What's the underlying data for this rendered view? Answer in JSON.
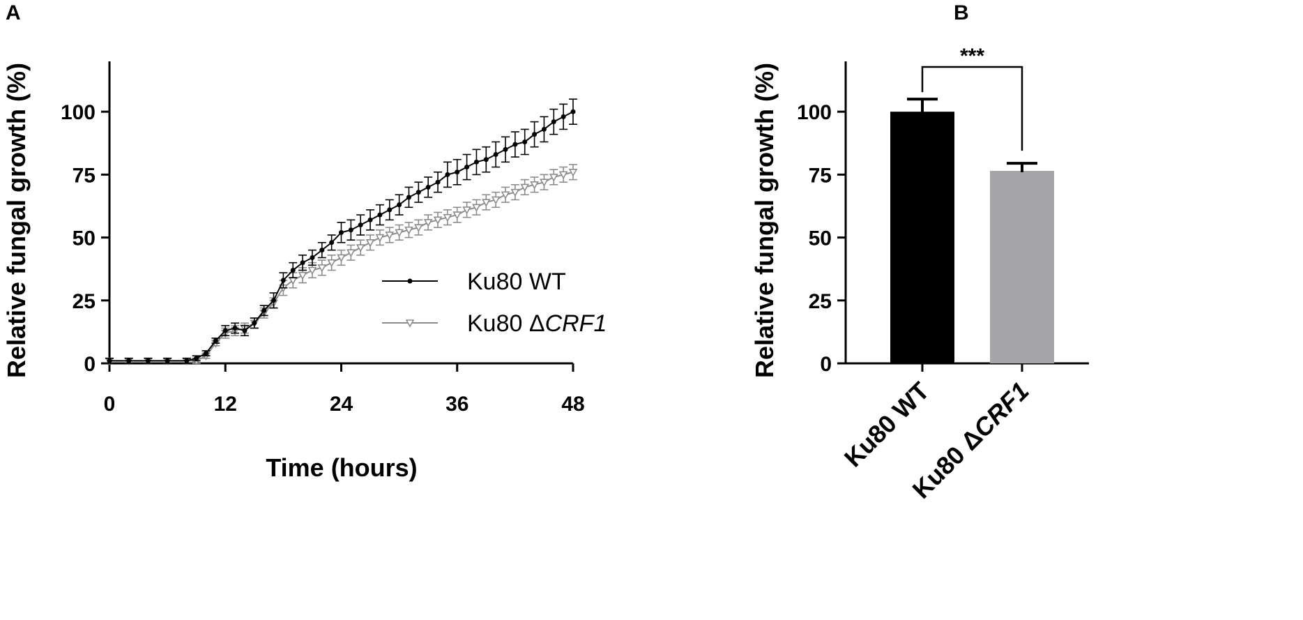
{
  "chart_data": [
    {
      "panel": "A",
      "type": "line",
      "xlabel": "Time (hours)",
      "ylabel": "Relative fungal growth (%)",
      "xlim": [
        0,
        48
      ],
      "ylim": [
        0,
        120
      ],
      "xticks": [
        "0",
        "12",
        "24",
        "36",
        "48"
      ],
      "yticks": [
        "0",
        "25",
        "50",
        "75",
        "100"
      ],
      "legend_position": "center-right",
      "series": [
        {
          "name": "Ku80 WT",
          "name_plain": "Ku80 ",
          "name_italic": "",
          "marker": "circle",
          "color": "#000000",
          "x": [
            0,
            2,
            4,
            6,
            8,
            9,
            10,
            11,
            12,
            13,
            14,
            15,
            16,
            17,
            18,
            19,
            20,
            21,
            22,
            23,
            24,
            25,
            26,
            27,
            28,
            29,
            30,
            31,
            32,
            33,
            34,
            35,
            36,
            37,
            38,
            39,
            40,
            41,
            42,
            43,
            44,
            45,
            46,
            47,
            48
          ],
          "y": [
            1,
            1,
            1,
            1,
            1,
            2,
            4,
            9,
            13,
            14,
            13,
            16,
            21,
            25,
            33,
            37,
            40,
            42,
            45,
            48,
            52,
            53,
            55,
            57,
            59,
            61,
            63,
            66,
            68,
            70,
            72,
            75,
            76,
            78,
            80,
            81,
            83,
            85,
            87,
            88,
            91,
            93,
            96,
            98,
            100
          ],
          "err": [
            1,
            1,
            1,
            1,
            1,
            1,
            1,
            1,
            2,
            2,
            2,
            2,
            2,
            3,
            3,
            3,
            3,
            3,
            3,
            3,
            4,
            4,
            4,
            4,
            4,
            4,
            4,
            4,
            4,
            4,
            4,
            5,
            5,
            5,
            5,
            5,
            5,
            5,
            5,
            5,
            5,
            5,
            5,
            5,
            5
          ]
        },
        {
          "name": "Ku80 ΔCRF1",
          "name_plain": "Ku80 Δ",
          "name_italic": "CRF1",
          "marker": "triangle-down",
          "color": "#8c8c8c",
          "x": [
            0,
            2,
            4,
            6,
            8,
            9,
            10,
            11,
            12,
            13,
            14,
            15,
            16,
            17,
            18,
            19,
            20,
            21,
            22,
            23,
            24,
            25,
            26,
            27,
            28,
            29,
            30,
            31,
            32,
            33,
            34,
            35,
            36,
            37,
            38,
            39,
            40,
            41,
            42,
            43,
            44,
            45,
            46,
            47,
            48
          ],
          "y": [
            1,
            1,
            1,
            1,
            1,
            1,
            3,
            8,
            12,
            13,
            14,
            16,
            20,
            24,
            30,
            33,
            35,
            37,
            38,
            40,
            42,
            44,
            46,
            48,
            50,
            51,
            52,
            53,
            54,
            56,
            57,
            58,
            59,
            61,
            62,
            64,
            65,
            67,
            68,
            70,
            71,
            72,
            74,
            75,
            76
          ],
          "err": [
            1,
            1,
            1,
            1,
            1,
            1,
            1,
            1,
            2,
            2,
            2,
            2,
            2,
            2,
            3,
            3,
            3,
            3,
            3,
            3,
            3,
            3,
            3,
            3,
            3,
            3,
            3,
            3,
            3,
            3,
            3,
            3,
            3,
            3,
            3,
            3,
            3,
            3,
            3,
            3,
            3,
            3,
            3,
            3,
            3
          ]
        }
      ]
    },
    {
      "panel": "B",
      "type": "bar",
      "ylabel": "Relative fungal growth (%)",
      "ylim": [
        0,
        120
      ],
      "yticks": [
        "0",
        "25",
        "50",
        "75",
        "100"
      ],
      "categories": [
        "Ku80 WT",
        "Ku80 ΔCRF1"
      ],
      "category_plain": [
        "Ku80 WT",
        "Ku80 Δ"
      ],
      "category_italic": [
        "",
        "CRF1"
      ],
      "values": [
        100,
        76.5
      ],
      "errors": [
        5,
        3
      ],
      "colors": [
        "#000000",
        "#a6a6a8"
      ],
      "significance": "***"
    }
  ]
}
